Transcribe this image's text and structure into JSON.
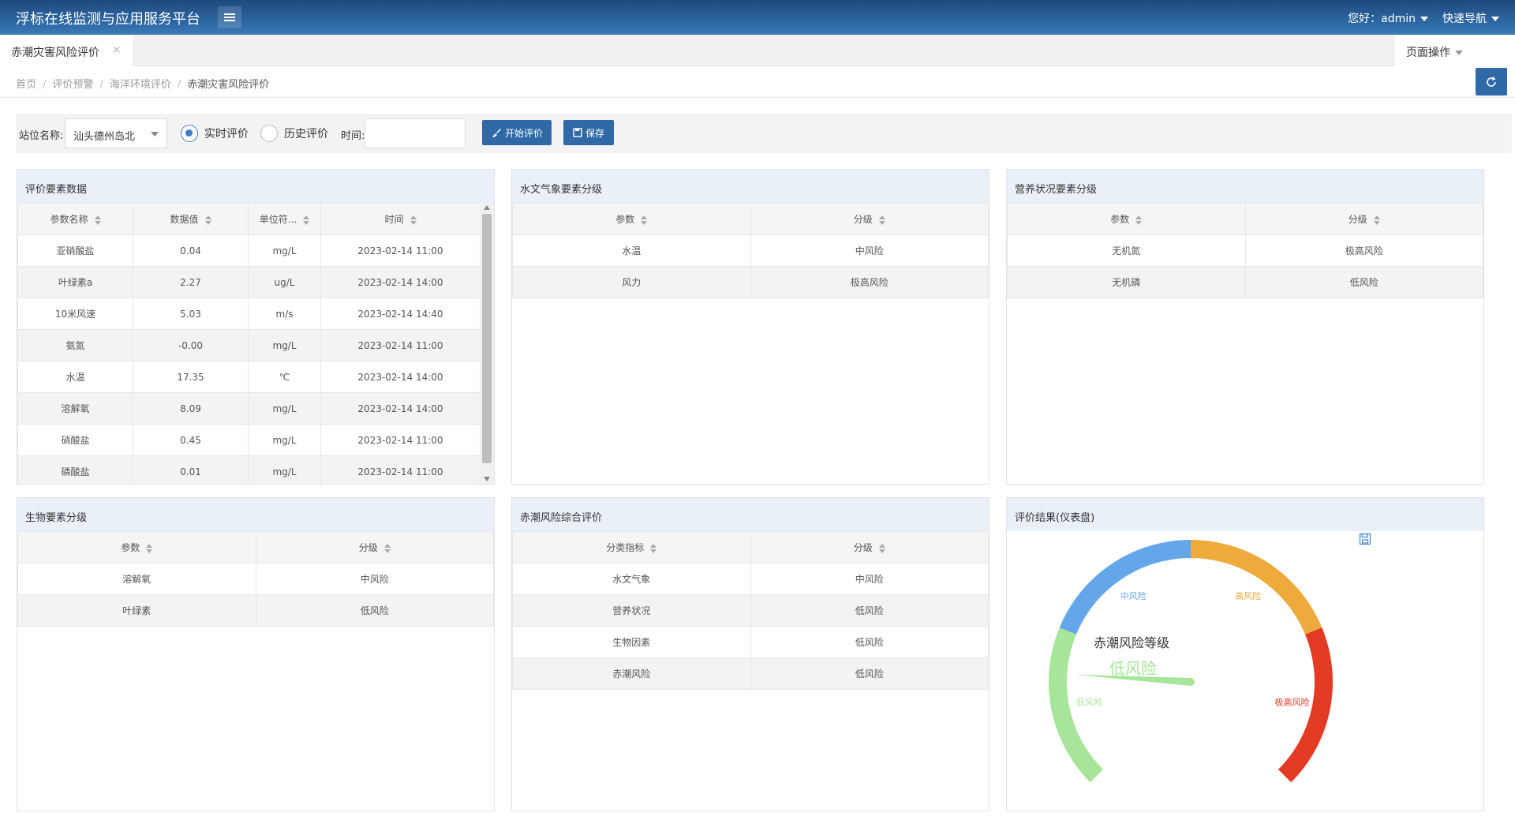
{
  "header": {
    "title": "浮标在线监测与应用服务平台",
    "user": "您好：admin",
    "quick_nav": "快速导航"
  },
  "tabs": [
    {
      "label": "赤潮灾害风险评价"
    }
  ],
  "page_ops": "页面操作",
  "breadcrumb": [
    "首页",
    "评价预警",
    "海洋环境评价",
    "赤潮灾害风险评价"
  ],
  "filter": {
    "station_label": "站位名称:",
    "station_value": "汕头德州岛北",
    "radio_realtime": "实时评价",
    "radio_history": "历史评价",
    "time_label": "时间:",
    "time_value": "",
    "start_btn": "开始评价",
    "save_btn": "保存"
  },
  "panels": {
    "elements": {
      "title": "评价要素数据",
      "columns": [
        "参数名称",
        "数据值",
        "单位符...",
        "时间"
      ],
      "rows": [
        [
          "亚硝酸盐",
          "0.04",
          "mg/L",
          "2023-02-14 11:00"
        ],
        [
          "叶绿素a",
          "2.27",
          "ug/L",
          "2023-02-14 14:00"
        ],
        [
          "10米风速",
          "5.03",
          "m/s",
          "2023-02-14 14:40"
        ],
        [
          "氨氮",
          "-0.00",
          "mg/L",
          "2023-02-14 11:00"
        ],
        [
          "水温",
          "17.35",
          "℃",
          "2023-02-14 14:00"
        ],
        [
          "溶解氧",
          "8.09",
          "mg/L",
          "2023-02-14 14:00"
        ],
        [
          "硝酸盐",
          "0.45",
          "mg/L",
          "2023-02-14 11:00"
        ],
        [
          "磷酸盐",
          "0.01",
          "mg/L",
          "2023-02-14 11:00"
        ]
      ]
    },
    "hydro": {
      "title": "水文气象要素分级",
      "columns": [
        "参数",
        "分级"
      ],
      "rows": [
        [
          "水温",
          "中风险"
        ],
        [
          "风力",
          "极高风险"
        ]
      ]
    },
    "nutrient": {
      "title": "营养状况要素分级",
      "columns": [
        "参数",
        "分级"
      ],
      "rows": [
        [
          "无机氮",
          "极高风险"
        ],
        [
          "无机磷",
          "低风险"
        ]
      ]
    },
    "bio": {
      "title": "生物要素分级",
      "columns": [
        "参数",
        "分级"
      ],
      "rows": [
        [
          "溶解氧",
          "中风险"
        ],
        [
          "叶绿素",
          "低风险"
        ]
      ]
    },
    "overall": {
      "title": "赤潮风险综合评价",
      "columns": [
        "分类指标",
        "分级"
      ],
      "rows": [
        [
          "水文气象",
          "中风险"
        ],
        [
          "营养状况",
          "低风险"
        ],
        [
          "生物因素",
          "低风险"
        ],
        [
          "赤潮风险",
          "低风险"
        ]
      ]
    },
    "gauge": {
      "title": "评价结果(仪表盘)",
      "level_title": "赤潮风险等级",
      "level_value": "低风险",
      "segments": [
        {
          "label": "低风险",
          "color": "#a7e59a"
        },
        {
          "label": "中风险",
          "color": "#64a6ea"
        },
        {
          "label": "高风险",
          "color": "#eeaa3a"
        },
        {
          "label": "极高风险",
          "color": "#e23a23"
        }
      ]
    }
  }
}
